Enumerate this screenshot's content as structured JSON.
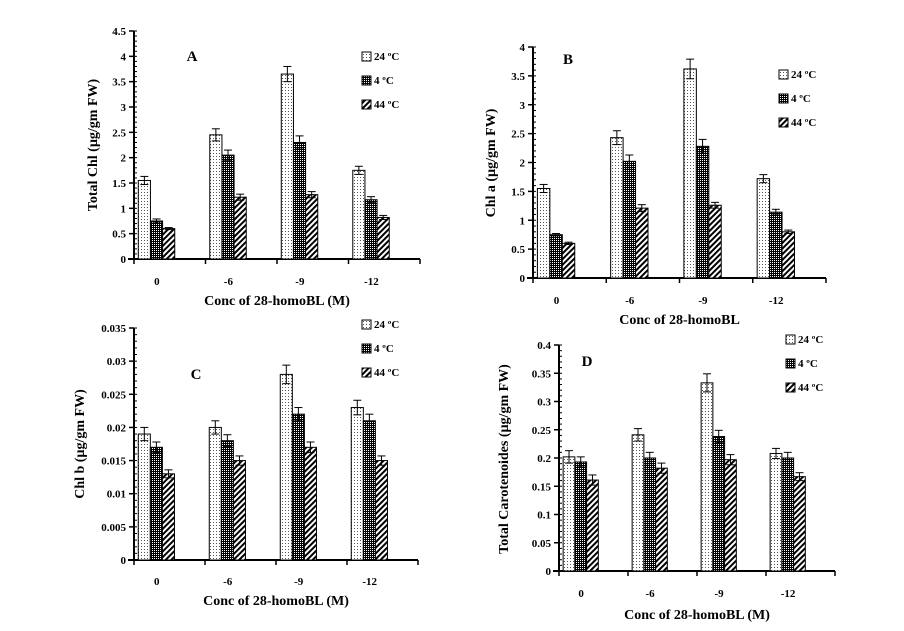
{
  "chart_data": [
    {
      "type": "bar",
      "panel_label": "A",
      "categories": [
        "0",
        "-6",
        "-9",
        "-12"
      ],
      "xlabel": "Conc of 28-homoBL (M)",
      "ylabel": "Total Chl (µg/gm FW)",
      "ylim": [
        0,
        4.5
      ],
      "yticks": [
        "0",
        "0.5",
        "1",
        "1.5",
        "2",
        "2.5",
        "3",
        "3.5",
        "4",
        "4.5"
      ],
      "ytick_values": [
        0,
        0.5,
        1,
        1.5,
        2,
        2.5,
        3,
        3.5,
        4,
        4.5
      ],
      "legend_position": "top-right",
      "series": [
        {
          "name": "24 ºC",
          "pattern": "dots",
          "values": [
            1.55,
            2.45,
            3.65,
            1.75
          ],
          "errors": [
            0.08,
            0.12,
            0.15,
            0.08
          ]
        },
        {
          "name": "4 ºC",
          "pattern": "checker",
          "values": [
            0.75,
            2.05,
            2.3,
            1.17
          ],
          "errors": [
            0.04,
            0.1,
            0.13,
            0.06
          ]
        },
        {
          "name": "44 ºC",
          "pattern": "diagonal",
          "values": [
            0.6,
            1.22,
            1.27,
            0.82
          ],
          "errors": [
            0.02,
            0.06,
            0.06,
            0.04
          ]
        }
      ]
    },
    {
      "type": "bar",
      "panel_label": "B",
      "categories": [
        "0",
        "-6",
        "-9",
        "-12"
      ],
      "xlabel": "Conc of 28-homoBL",
      "ylabel": "Chl a (µg/gm FW)",
      "ylim": [
        0,
        4
      ],
      "yticks": [
        "0",
        "0.5",
        "1",
        "1.5",
        "2",
        "2.5",
        "3",
        "3.5",
        "4"
      ],
      "ytick_values": [
        0,
        0.5,
        1,
        1.5,
        2,
        2.5,
        3,
        3.5,
        4
      ],
      "legend_position": "top-right",
      "series": [
        {
          "name": "24 ºC",
          "pattern": "dots",
          "values": [
            1.55,
            2.43,
            3.62,
            1.72
          ],
          "errors": [
            0.07,
            0.12,
            0.17,
            0.07
          ]
        },
        {
          "name": "4 ºC",
          "pattern": "checker",
          "values": [
            0.75,
            2.02,
            2.28,
            1.14
          ],
          "errors": [
            0.02,
            0.11,
            0.12,
            0.05
          ]
        },
        {
          "name": "44 ºC",
          "pattern": "diagonal",
          "values": [
            0.6,
            1.21,
            1.26,
            0.8
          ],
          "errors": [
            0.02,
            0.06,
            0.05,
            0.03
          ]
        }
      ]
    },
    {
      "type": "bar",
      "panel_label": "C",
      "categories": [
        "0",
        "-6",
        "-9",
        "-12"
      ],
      "xlabel": "Conc of 28-homoBL (M)",
      "ylabel": "Chl b (µg/gm FW)",
      "ylim": [
        0,
        0.035
      ],
      "yticks": [
        "0",
        "0.005",
        "0.01",
        "0.015",
        "0.02",
        "0.025",
        "0.03",
        "0.035"
      ],
      "ytick_values": [
        0,
        0.005,
        0.01,
        0.015,
        0.02,
        0.025,
        0.03,
        0.035
      ],
      "legend_position": "top-right",
      "series": [
        {
          "name": "24 ºC",
          "pattern": "dots",
          "values": [
            0.019,
            0.02,
            0.028,
            0.023
          ],
          "errors": [
            0.001,
            0.001,
            0.0014,
            0.0011
          ]
        },
        {
          "name": "4 ºC",
          "pattern": "checker",
          "values": [
            0.017,
            0.018,
            0.022,
            0.021
          ],
          "errors": [
            0.0008,
            0.0009,
            0.001,
            0.001
          ]
        },
        {
          "name": "44 ºC",
          "pattern": "diagonal",
          "values": [
            0.013,
            0.015,
            0.017,
            0.015
          ],
          "errors": [
            0.0006,
            0.0007,
            0.0008,
            0.0007
          ]
        }
      ]
    },
    {
      "type": "bar",
      "panel_label": "D",
      "categories": [
        "0",
        "-6",
        "-9",
        "-12"
      ],
      "xlabel": "Conc of 28-homoBL (M)",
      "ylabel": "Total Carotenoides (µg/gm FW)",
      "ylim": [
        0,
        0.4
      ],
      "yticks": [
        "0",
        "0.05",
        "0.1",
        "0.15",
        "0.2",
        "0.25",
        "0.3",
        "0.35",
        "0.4"
      ],
      "ytick_values": [
        0,
        0.05,
        0.1,
        0.15,
        0.2,
        0.25,
        0.3,
        0.35,
        0.4
      ],
      "legend_position": "top-right",
      "series": [
        {
          "name": "24 ºC",
          "pattern": "dots",
          "values": [
            0.202,
            0.241,
            0.333,
            0.208
          ],
          "errors": [
            0.011,
            0.011,
            0.016,
            0.009
          ]
        },
        {
          "name": "4 ºC",
          "pattern": "checker",
          "values": [
            0.193,
            0.2,
            0.238,
            0.2
          ],
          "errors": [
            0.009,
            0.01,
            0.011,
            0.01
          ]
        },
        {
          "name": "44 ºC",
          "pattern": "diagonal",
          "values": [
            0.161,
            0.182,
            0.197,
            0.167
          ],
          "errors": [
            0.009,
            0.009,
            0.009,
            0.007
          ]
        }
      ]
    }
  ]
}
